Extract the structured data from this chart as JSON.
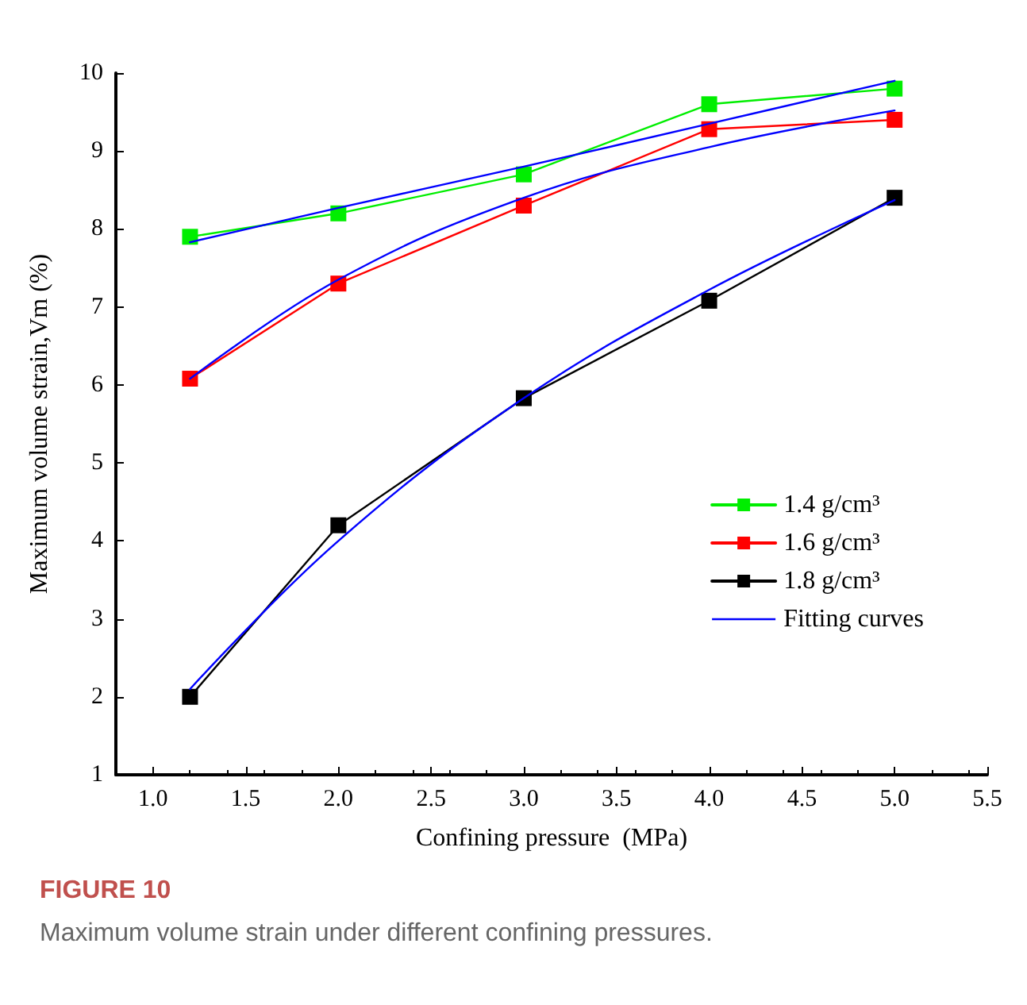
{
  "chart_data": {
    "type": "line",
    "title": "FIGURE 10",
    "subtitle": "Maximum volume strain under different confining pressures.",
    "xlabel": "Confining pressure  (MPa)",
    "ylabel": "Maximum volume strain,Vm (%)",
    "x": [
      1.2,
      2,
      3,
      4,
      5
    ],
    "series": [
      {
        "name": "1.4 g/cm³",
        "color": "#00ee00",
        "values": [
          7.9,
          8.2,
          8.7,
          9.6,
          9.8
        ],
        "marker": "square"
      },
      {
        "name": "1.6 g/cm³",
        "color": "#ff0000",
        "values": [
          6.08,
          7.3,
          8.3,
          9.28,
          9.4
        ],
        "marker": "square"
      },
      {
        "name": "1.8 g/cm³",
        "color": "#000000",
        "values": [
          2.0,
          4.2,
          5.83,
          7.08,
          8.4
        ],
        "marker": "square"
      },
      {
        "name": "Fitting curves",
        "color": "#0000ff",
        "values": [
          7.83,
          8.27,
          8.8,
          9.35,
          9.9
        ],
        "marker": "none"
      },
      {
        "color": "#0000ff",
        "values": [
          6.08,
          7.35,
          8.4,
          9.05,
          9.52
        ],
        "marker": "none"
      },
      {
        "color": "#0000ff",
        "values": [
          2.1,
          4.0,
          5.83,
          7.22,
          8.37
        ],
        "marker": "none"
      }
    ],
    "xlim": [
      0.8,
      5.5
    ],
    "xticks": [
      {
        "value": 1,
        "label": "1.0"
      },
      1.5,
      {
        "value": 2,
        "label": "2.0"
      },
      2.5,
      {
        "value": 3,
        "label": "3.0"
      },
      3.5,
      {
        "value": 4,
        "label": "4.0"
      },
      4.5,
      {
        "value": 5,
        "label": "5.0"
      },
      5.5
    ],
    "ylim": [
      1,
      10
    ],
    "yticks": [
      1,
      2,
      3,
      4,
      5,
      6,
      7,
      8,
      9,
      10
    ],
    "grid": false,
    "legend": "right",
    "line_style": "solid"
  }
}
